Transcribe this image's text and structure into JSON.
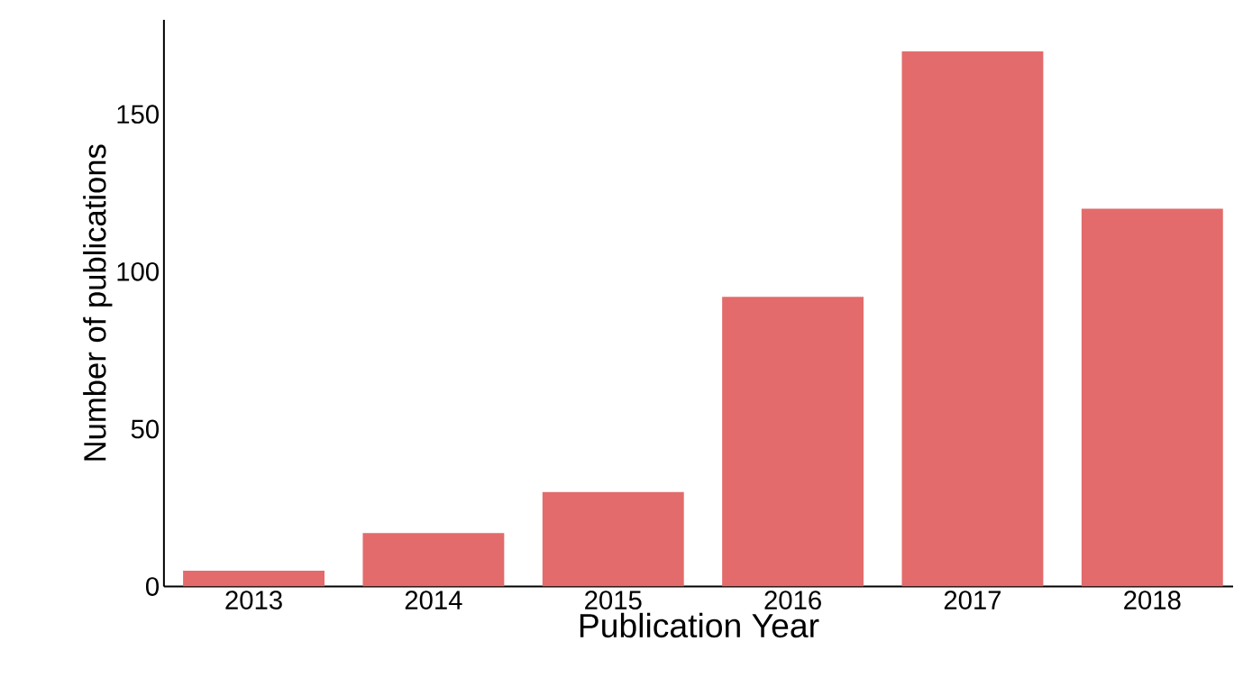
{
  "chart_data": {
    "type": "bar",
    "xlabel": "Publication Year",
    "ylabel": "Number of publications",
    "categories": [
      "2013",
      "2014",
      "2015",
      "2016",
      "2017",
      "2018"
    ],
    "values": [
      5,
      17,
      30,
      92,
      170,
      120
    ],
    "color": "#e36b6b",
    "ylim": [
      0,
      180
    ],
    "yticks": [
      0,
      50,
      100,
      150
    ],
    "grid": false
  }
}
